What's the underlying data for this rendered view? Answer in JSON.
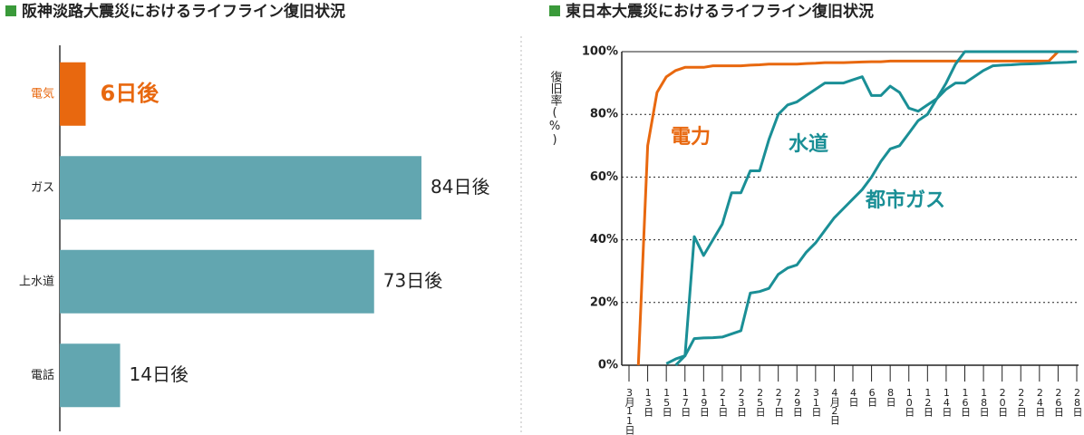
{
  "chart_data": [
    {
      "type": "bar",
      "orientation": "horizontal",
      "title": "阪神淡路大震災におけるライフライン復旧状況",
      "categories": [
        "電気",
        "ガス",
        "上水道",
        "電話"
      ],
      "values": [
        6,
        84,
        73,
        14
      ],
      "value_labels": [
        "6日後",
        "84日後",
        "73日後",
        "14日後"
      ],
      "colors": [
        "#e8680f",
        "#62a6b0",
        "#62a6b0",
        "#62a6b0"
      ],
      "highlight_color": "#e8680f"
    },
    {
      "type": "line",
      "title": "東日本大震災におけるライフライン復旧状況",
      "ylabel": "復旧率(%)",
      "categories": [
        "3月11日",
        null,
        "13日",
        null,
        "15日",
        null,
        "17日",
        null,
        "19日",
        null,
        "21日",
        null,
        "23日",
        null,
        "25日",
        null,
        "27日",
        null,
        "29日",
        null,
        "31日",
        null,
        "4月2日",
        null,
        "4日",
        null,
        "6日",
        null,
        "8日",
        null,
        "10日",
        null,
        "12日",
        null,
        "14日",
        null,
        "16日",
        null,
        "18日",
        null,
        "20日",
        null,
        "22日",
        null,
        "24日",
        null,
        "26日",
        null,
        "28日"
      ],
      "ylim": [
        0,
        100
      ],
      "yticks": [
        {
          "value": 0,
          "label": "0%"
        },
        {
          "value": 20,
          "label": "20%"
        },
        {
          "value": 40,
          "label": "40%"
        },
        {
          "value": 60,
          "label": "60%"
        },
        {
          "value": 80,
          "label": "80%"
        },
        {
          "value": 100,
          "label": "100%"
        }
      ],
      "grid": true,
      "series": [
        {
          "name": "電力",
          "color": "#e8680f",
          "values": [
            null,
            0,
            70,
            87,
            92,
            94,
            95,
            95,
            95,
            95.5,
            95.5,
            95.5,
            95.5,
            95.7,
            95.8,
            96,
            96,
            96,
            96,
            96.2,
            96.3,
            96.5,
            96.5,
            96.5,
            96.6,
            96.7,
            96.8,
            96.8,
            97,
            97,
            97,
            97,
            97,
            97,
            97,
            97,
            97,
            97,
            97,
            97,
            97,
            97,
            97,
            97,
            97,
            97,
            100,
            100,
            100
          ]
        },
        {
          "name": "水道",
          "color": "#1a8f96",
          "values": [
            null,
            null,
            null,
            null,
            0.5,
            2,
            3,
            41,
            35,
            40,
            45,
            55,
            55,
            62,
            62,
            72,
            80,
            83,
            84,
            86,
            88,
            90,
            90,
            90,
            91,
            92,
            86,
            86,
            89,
            87,
            82,
            81,
            83,
            85,
            88,
            90,
            90,
            92,
            94,
            95.5,
            95.7,
            95.8,
            96,
            96.1,
            96.2,
            96.4,
            96.5,
            96.6,
            96.8
          ]
        },
        {
          "name": "都市ガス",
          "color": "#1a8f96",
          "values": [
            null,
            null,
            null,
            null,
            null,
            0,
            3,
            8.5,
            8.7,
            8.8,
            9,
            10,
            11,
            23,
            23.5,
            24.5,
            29,
            31,
            32,
            36,
            39,
            43,
            47,
            50,
            53,
            56,
            60,
            65,
            69,
            70,
            74,
            78,
            80,
            85,
            90,
            96,
            100,
            100,
            100,
            100,
            100,
            100,
            100,
            100,
            100,
            100,
            100,
            100,
            100
          ]
        }
      ]
    }
  ]
}
